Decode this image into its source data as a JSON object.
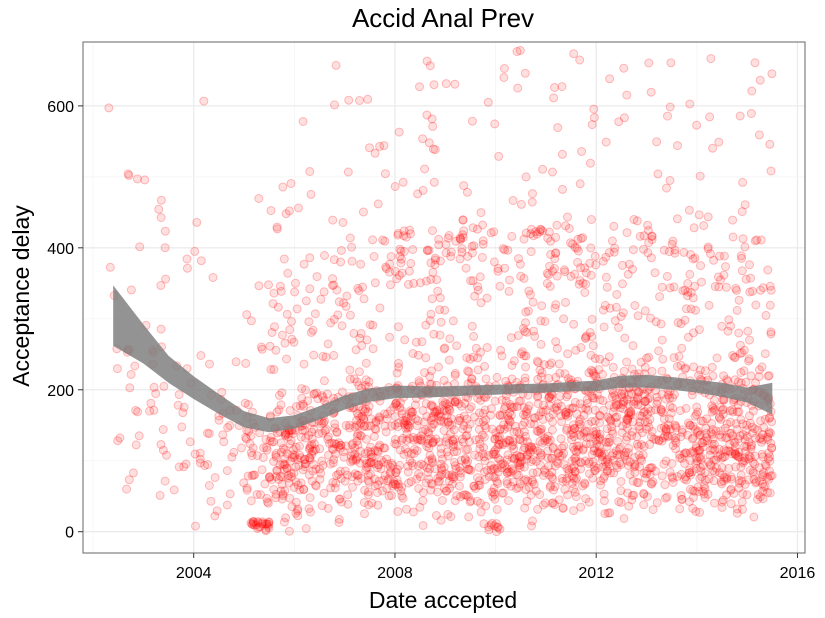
{
  "chart_data": {
    "type": "scatter",
    "title": "Accid Anal Prev",
    "xlabel": "Date accepted",
    "ylabel": "Acceptance delay",
    "xlim": [
      2001.8,
      2016.15
    ],
    "ylim": [
      -30,
      690
    ],
    "x_ticks": [
      2004,
      2008,
      2012,
      2016
    ],
    "y_ticks": [
      0,
      200,
      400,
      600
    ],
    "x_tick_labels": [
      "2004",
      "2008",
      "2012",
      "2016"
    ],
    "y_tick_labels": [
      "0",
      "200",
      "400",
      "600"
    ],
    "grid": true,
    "legend": "none",
    "colors": {
      "points": "#ff0000",
      "smooth_band": "#808080",
      "grid": "#ebebeb",
      "border": "#7f7f7f"
    },
    "smooth_band": {
      "x": [
        2002.4,
        2003.0,
        2003.5,
        2004.0,
        2004.5,
        2005.0,
        2005.5,
        2006.0,
        2006.5,
        2007.0,
        2007.5,
        2008.0,
        2008.5,
        2009.0,
        2009.5,
        2010.0,
        2010.5,
        2011.0,
        2011.5,
        2012.0,
        2012.5,
        2013.0,
        2013.5,
        2014.0,
        2014.5,
        2015.0,
        2015.5
      ],
      "lower": [
        262,
        237,
        210,
        187,
        166,
        147,
        140,
        145,
        158,
        172,
        183,
        188,
        189,
        190,
        192,
        193,
        195,
        196,
        198,
        198,
        203,
        203,
        200,
        196,
        190,
        182,
        165
      ],
      "upper": [
        347,
        292,
        248,
        219,
        194,
        170,
        160,
        164,
        177,
        192,
        202,
        206,
        205,
        205,
        206,
        207,
        208,
        209,
        211,
        213,
        220,
        221,
        218,
        214,
        210,
        203,
        210
      ]
    }
  }
}
